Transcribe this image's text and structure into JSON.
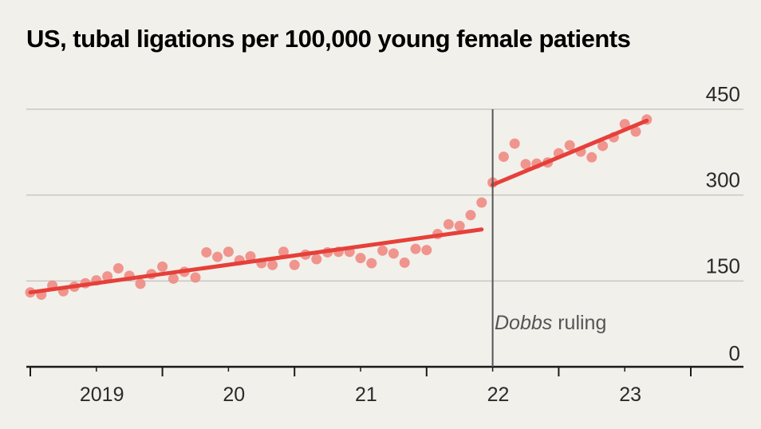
{
  "chart_data": {
    "type": "scatter",
    "title": "US, tubal ligations per 100,000 young female patients",
    "y_axis": {
      "ylim": [
        0,
        450
      ],
      "ticks": [
        0,
        150,
        300,
        450
      ],
      "position": "right",
      "grid": true
    },
    "x_axis": {
      "labels": [
        "2019",
        "20",
        "21",
        "22",
        "23"
      ],
      "label_months": [
        6.5,
        18.5,
        30.5,
        42.5,
        54.5
      ],
      "major_ticks": [
        0,
        12,
        24,
        36,
        48,
        60
      ],
      "minor_ticks": [
        6,
        18,
        30,
        42,
        54
      ],
      "xlim": [
        0,
        66
      ]
    },
    "annotation": {
      "emphasis": "Dobbs",
      "rest": " ruling",
      "month": 42
    },
    "series": [
      {
        "kind": "points",
        "color": "#f08a84",
        "values": [
          [
            0,
            130
          ],
          [
            1,
            126
          ],
          [
            2,
            142
          ],
          [
            3,
            132
          ],
          [
            4,
            140
          ],
          [
            5,
            146
          ],
          [
            6,
            151
          ],
          [
            7,
            158
          ],
          [
            8,
            172
          ],
          [
            9,
            159
          ],
          [
            10,
            145
          ],
          [
            11,
            162
          ],
          [
            12,
            175
          ],
          [
            13,
            154
          ],
          [
            14,
            166
          ],
          [
            15,
            156
          ],
          [
            16,
            200
          ],
          [
            17,
            192
          ],
          [
            18,
            201
          ],
          [
            19,
            186
          ],
          [
            20,
            193
          ],
          [
            21,
            181
          ],
          [
            22,
            178
          ],
          [
            23,
            201
          ],
          [
            24,
            178
          ],
          [
            25,
            196
          ],
          [
            26,
            188
          ],
          [
            27,
            200
          ],
          [
            28,
            201
          ],
          [
            29,
            201
          ],
          [
            30,
            190
          ],
          [
            31,
            181
          ],
          [
            32,
            203
          ],
          [
            33,
            198
          ],
          [
            34,
            182
          ],
          [
            35,
            206
          ],
          [
            36,
            204
          ],
          [
            37,
            232
          ],
          [
            38,
            249
          ],
          [
            39,
            246
          ],
          [
            40,
            265
          ],
          [
            41,
            287
          ],
          [
            42,
            322
          ],
          [
            43,
            367
          ],
          [
            44,
            390
          ],
          [
            45,
            354
          ],
          [
            46,
            355
          ],
          [
            47,
            357
          ],
          [
            48,
            373
          ],
          [
            49,
            387
          ],
          [
            50,
            376
          ],
          [
            51,
            366
          ],
          [
            52,
            386
          ],
          [
            53,
            401
          ],
          [
            54,
            424
          ],
          [
            55,
            411
          ],
          [
            56,
            432
          ]
        ]
      },
      {
        "kind": "trend",
        "color": "#e6403a",
        "points": [
          [
            0,
            130
          ],
          [
            41,
            240
          ]
        ]
      },
      {
        "kind": "trend",
        "color": "#e6403a",
        "points": [
          [
            42,
            318
          ],
          [
            56,
            430
          ]
        ]
      }
    ]
  }
}
